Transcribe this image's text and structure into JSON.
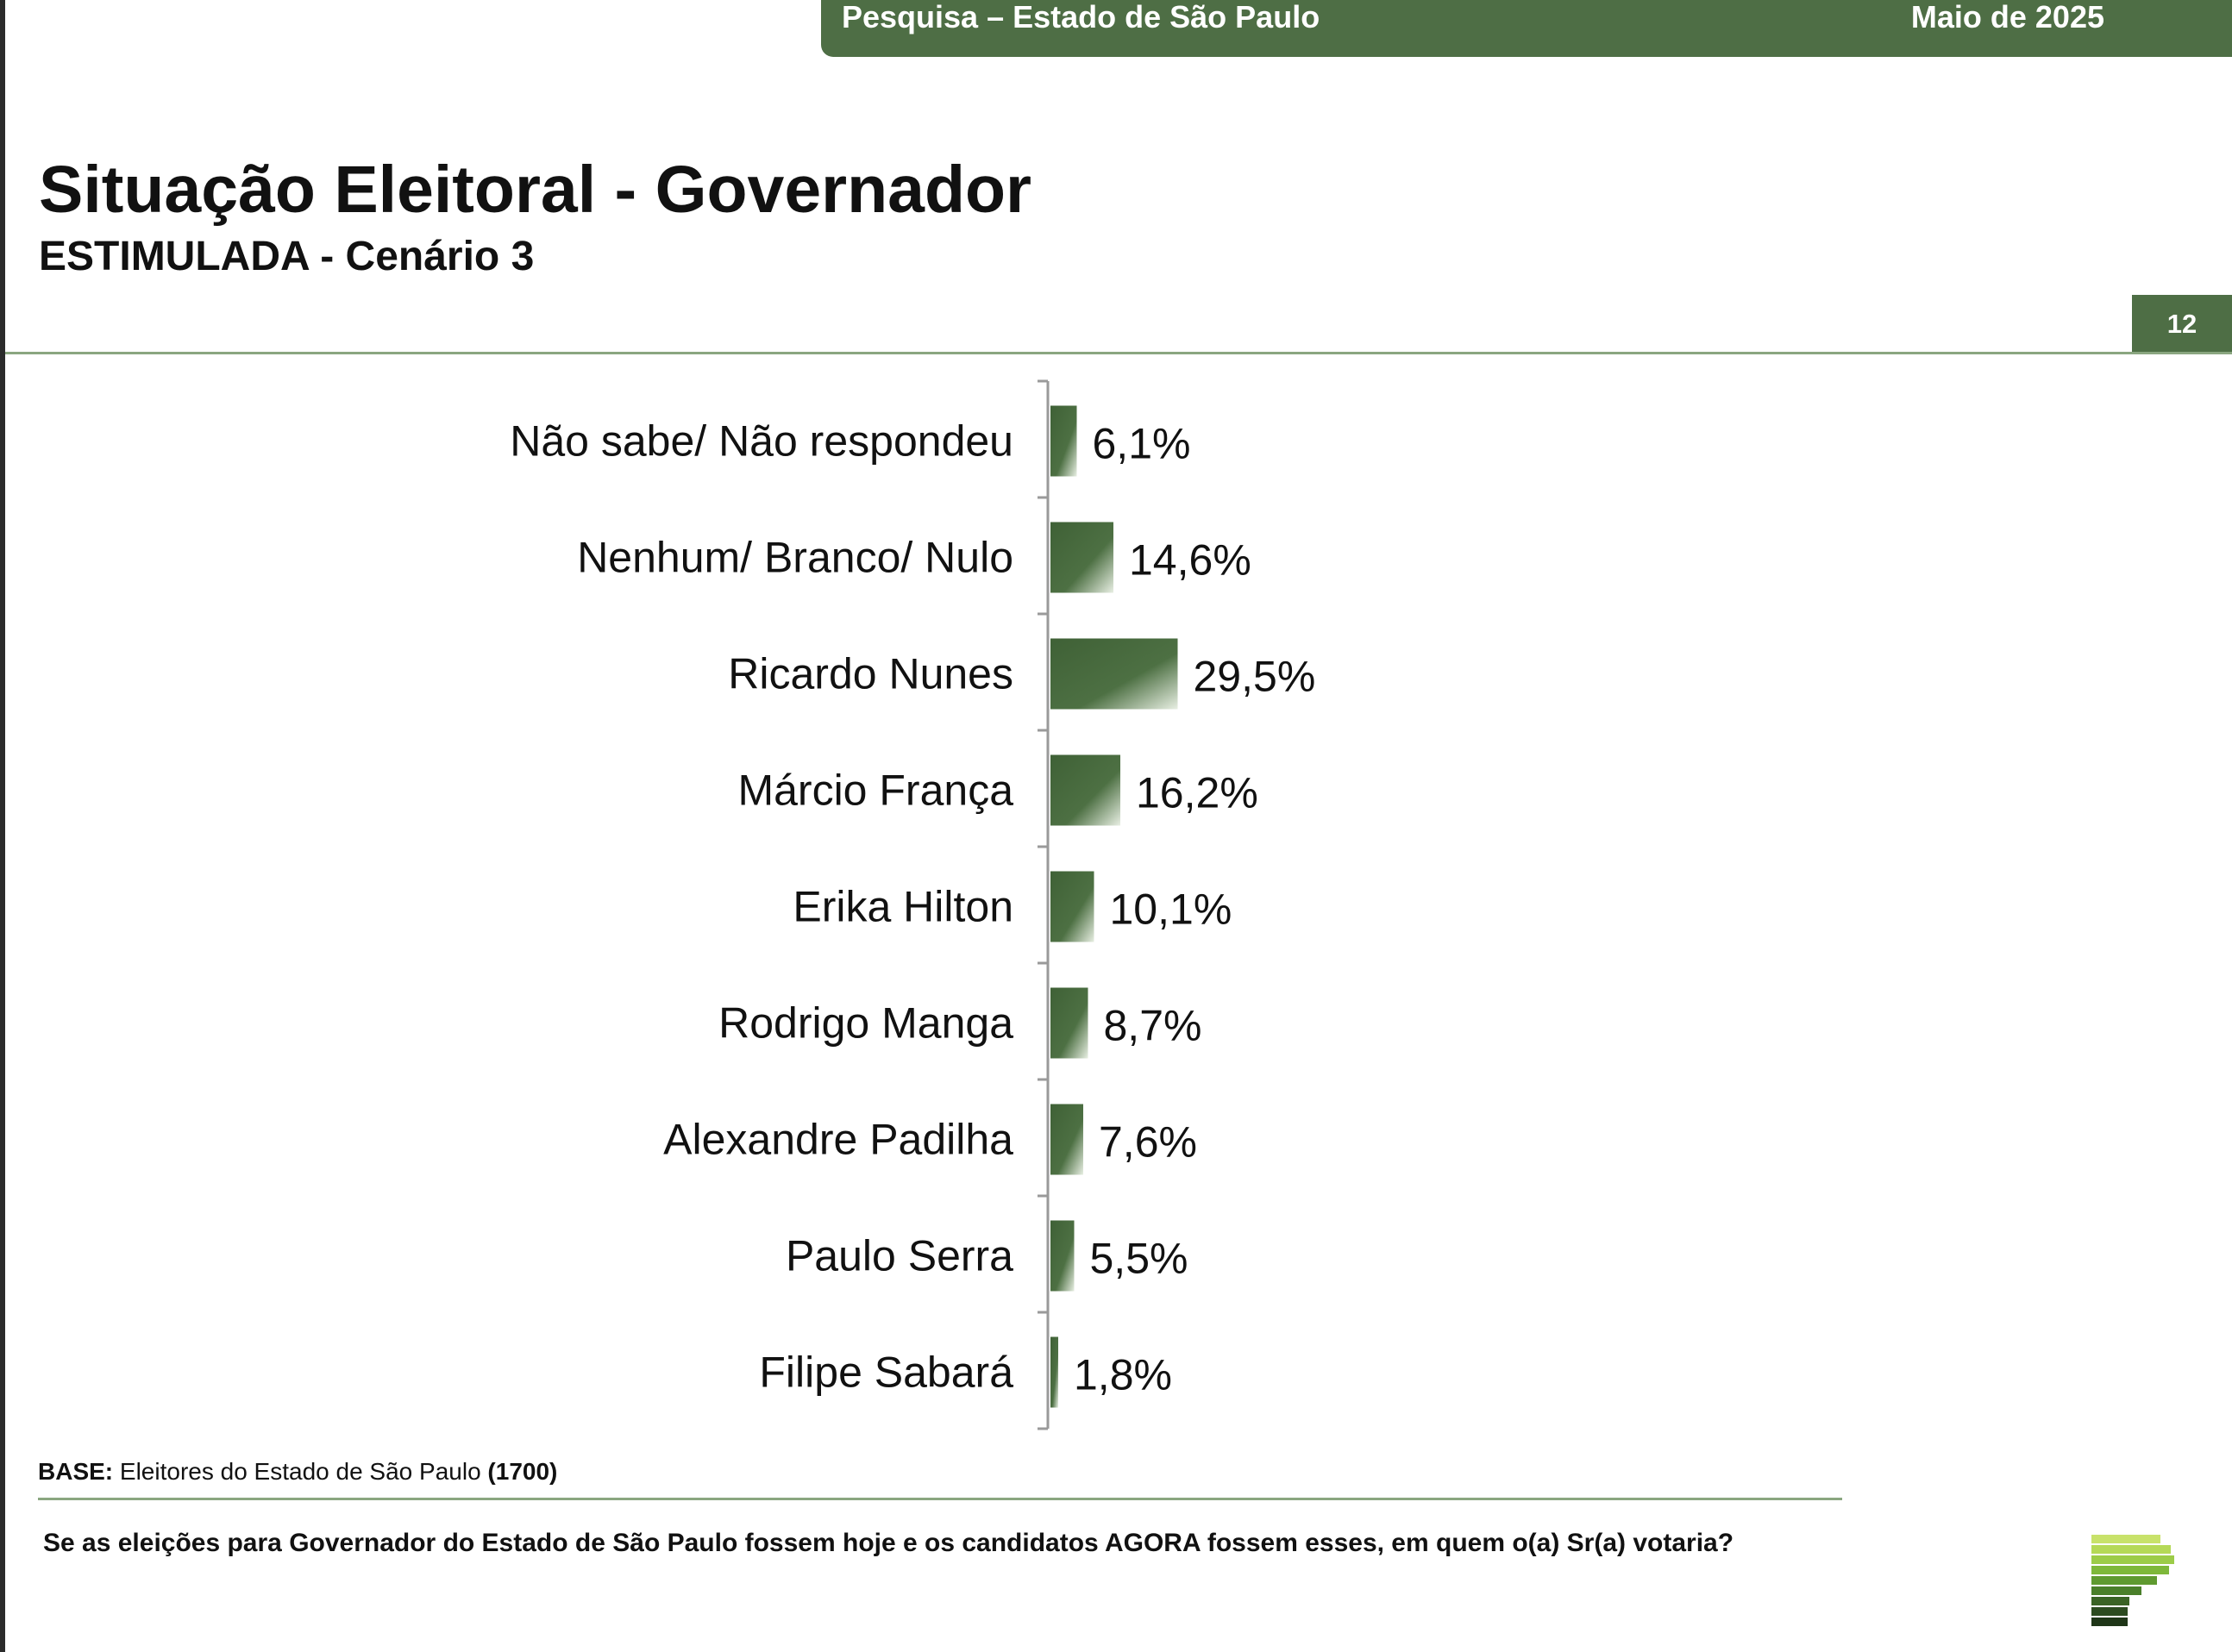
{
  "header": {
    "banner_left": "Pesquisa – Estado de São Paulo",
    "banner_right": "Maio de 2025",
    "title": "Situação Eleitoral - Governador",
    "subtitle": "ESTIMULADA - Cenário 3",
    "page_number": "12"
  },
  "colors": {
    "brand_green": "#4e6e45",
    "bar_dark": "#3f6136",
    "bar_light": "#e8efe3",
    "rule": "#8aa680"
  },
  "chart_data": {
    "type": "bar",
    "orientation": "horizontal",
    "categories": [
      "Não sabe/ Não respondeu",
      "Nenhum/ Branco/ Nulo",
      "Ricardo Nunes",
      "Márcio França",
      "Erika Hilton",
      "Rodrigo Manga",
      "Alexandre Padilha",
      "Paulo Serra",
      "Filipe Sabará"
    ],
    "values": [
      6.1,
      14.6,
      29.5,
      16.2,
      10.1,
      8.7,
      7.6,
      5.5,
      1.8
    ],
    "value_labels": [
      "6,1%",
      "14,6%",
      "29,5%",
      "16,2%",
      "10,1%",
      "8,7%",
      "7,6%",
      "5,5%",
      "1,8%"
    ],
    "unit": "%",
    "xlim": [
      0,
      100
    ],
    "grid": false,
    "legend": "none"
  },
  "footer": {
    "base_label": "BASE:",
    "base_text": "Eleitores do Estado de São Paulo",
    "base_count": "(1700)",
    "question": "Se as eleições para Governador do Estado de São Paulo fossem hoje e os candidatos AGORA fossem esses, em quem o(a) Sr(a) votaria?"
  },
  "logo": {
    "icon": "stacked-green-bars-logo"
  }
}
